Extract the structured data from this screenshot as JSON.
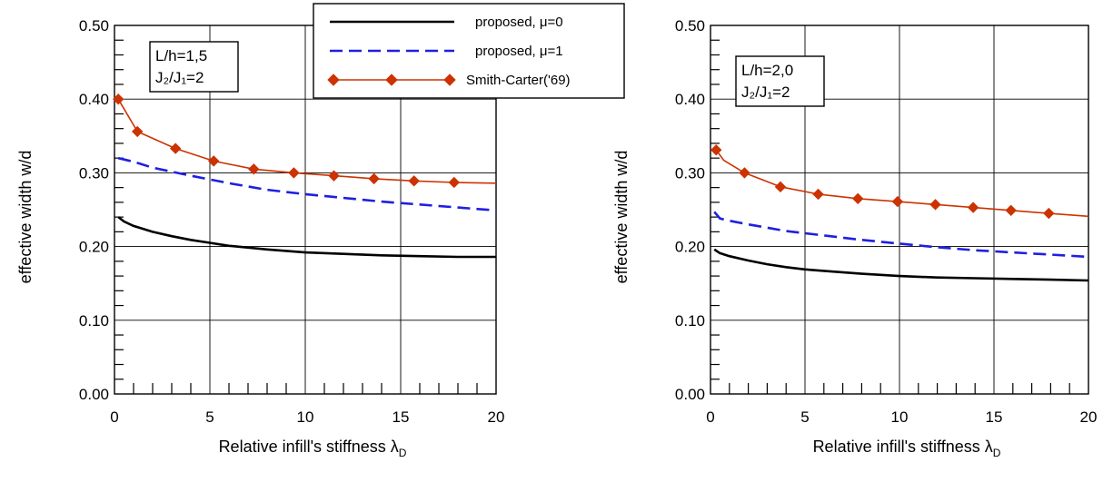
{
  "chart_data": [
    {
      "type": "line",
      "xlabel": "Relative infill's stiffness",
      "xlabel_symbol": "λ",
      "xlabel_sub": "D",
      "ylabel": "effective width  w/d",
      "xlim": [
        0,
        20
      ],
      "ylim": [
        0,
        0.5
      ],
      "xticks": [
        "0",
        "5",
        "10",
        "15",
        "20"
      ],
      "yticks": [
        "0.00",
        "0.10",
        "0.20",
        "0.30",
        "0.40",
        "0.50"
      ],
      "grid": true,
      "annotation": [
        "L/h=1,5",
        "J₂/J₁=2"
      ],
      "series": [
        {
          "name": "proposed,  μ=0",
          "style": "solid",
          "color": "#000000",
          "x": [
            0.2,
            0.5,
            1,
            2,
            3,
            4,
            5,
            6,
            8,
            10,
            12,
            14,
            16,
            18,
            20
          ],
          "y": [
            0.24,
            0.234,
            0.228,
            0.22,
            0.214,
            0.209,
            0.205,
            0.201,
            0.196,
            0.192,
            0.19,
            0.188,
            0.187,
            0.186,
            0.186
          ]
        },
        {
          "name": "proposed,  μ=1",
          "style": "dashed",
          "color": "#1f1fe0",
          "x": [
            0.2,
            1,
            2,
            4,
            6,
            8,
            10,
            12,
            14,
            16,
            18,
            20
          ],
          "y": [
            0.32,
            0.315,
            0.307,
            0.296,
            0.286,
            0.277,
            0.271,
            0.266,
            0.261,
            0.257,
            0.253,
            0.249
          ]
        },
        {
          "name": "Smith-Carter('69)",
          "style": "solid-marker",
          "color": "#cc3300",
          "x": [
            0.2,
            1.2,
            3.2,
            5.2,
            7.3,
            9.4,
            11.5,
            13.6,
            15.7,
            17.8,
            20
          ],
          "y": [
            0.4,
            0.356,
            0.333,
            0.316,
            0.305,
            0.3,
            0.296,
            0.292,
            0.289,
            0.287,
            0.286
          ],
          "marker_x": [
            0.2,
            1.2,
            3.2,
            5.2,
            7.3,
            9.4,
            11.5,
            13.6,
            15.7,
            17.8
          ]
        }
      ],
      "legend": "top-center"
    },
    {
      "type": "line",
      "xlabel": "Relative infill's stiffness",
      "xlabel_symbol": "λ",
      "xlabel_sub": "D",
      "ylabel": "effective width  w/d",
      "xlim": [
        0,
        20
      ],
      "ylim": [
        0,
        0.5
      ],
      "xticks": [
        "0",
        "5",
        "10",
        "15",
        "20"
      ],
      "yticks": [
        "0.00",
        "0.10",
        "0.20",
        "0.30",
        "0.40",
        "0.50"
      ],
      "grid": true,
      "annotation": [
        "L/h=2,0",
        "J₂/J₁=2"
      ],
      "series": [
        {
          "name": "proposed,  μ=0",
          "style": "solid",
          "color": "#000000",
          "x": [
            0.2,
            0.5,
            1,
            2,
            3,
            4,
            5,
            6,
            8,
            10,
            12,
            14,
            16,
            18,
            20
          ],
          "y": [
            0.196,
            0.191,
            0.187,
            0.181,
            0.176,
            0.172,
            0.169,
            0.167,
            0.163,
            0.16,
            0.158,
            0.157,
            0.156,
            0.155,
            0.154
          ]
        },
        {
          "name": "proposed,  μ=1",
          "style": "dashed",
          "color": "#1f1fe0",
          "x": [
            0.2,
            0.5,
            1,
            2,
            4,
            6,
            8,
            10,
            12,
            14,
            16,
            18,
            20
          ],
          "y": [
            0.247,
            0.238,
            0.235,
            0.23,
            0.221,
            0.215,
            0.209,
            0.204,
            0.199,
            0.195,
            0.192,
            0.189,
            0.186
          ]
        },
        {
          "name": "Smith-Carter('69)",
          "style": "solid-marker",
          "color": "#cc3300",
          "x": [
            0.3,
            0.7,
            1.8,
            3.7,
            5.7,
            7.8,
            9.9,
            11.9,
            13.9,
            15.9,
            17.9,
            20
          ],
          "y": [
            0.331,
            0.317,
            0.3,
            0.281,
            0.271,
            0.265,
            0.261,
            0.257,
            0.253,
            0.249,
            0.245,
            0.241
          ],
          "marker_x": [
            0.3,
            1.8,
            3.7,
            5.7,
            7.8,
            9.9,
            11.9,
            13.9,
            15.9,
            17.9
          ]
        }
      ]
    }
  ],
  "legend_items": [
    {
      "label": "proposed,  μ=0",
      "style": "solid",
      "color": "#000000"
    },
    {
      "label": "proposed,  μ=1",
      "style": "dashed",
      "color": "#1f1fe0"
    },
    {
      "label": "Smith-Carter('69)",
      "style": "solid-marker",
      "color": "#cc3300"
    }
  ]
}
